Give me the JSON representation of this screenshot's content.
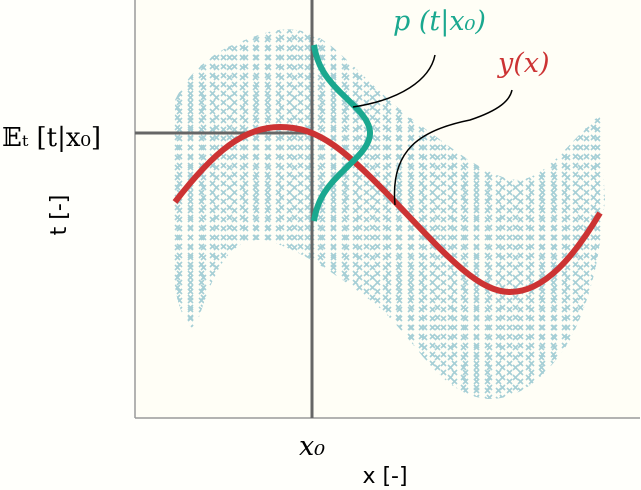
{
  "annotations": {
    "density": "p (t|x₀)",
    "mean_function": "y(x)",
    "expectation": "𝔼ₜ [t|x₀]",
    "x_point": "x₀"
  },
  "axes": {
    "x_label": "x [-]",
    "y_label": "t [-]"
  }
}
